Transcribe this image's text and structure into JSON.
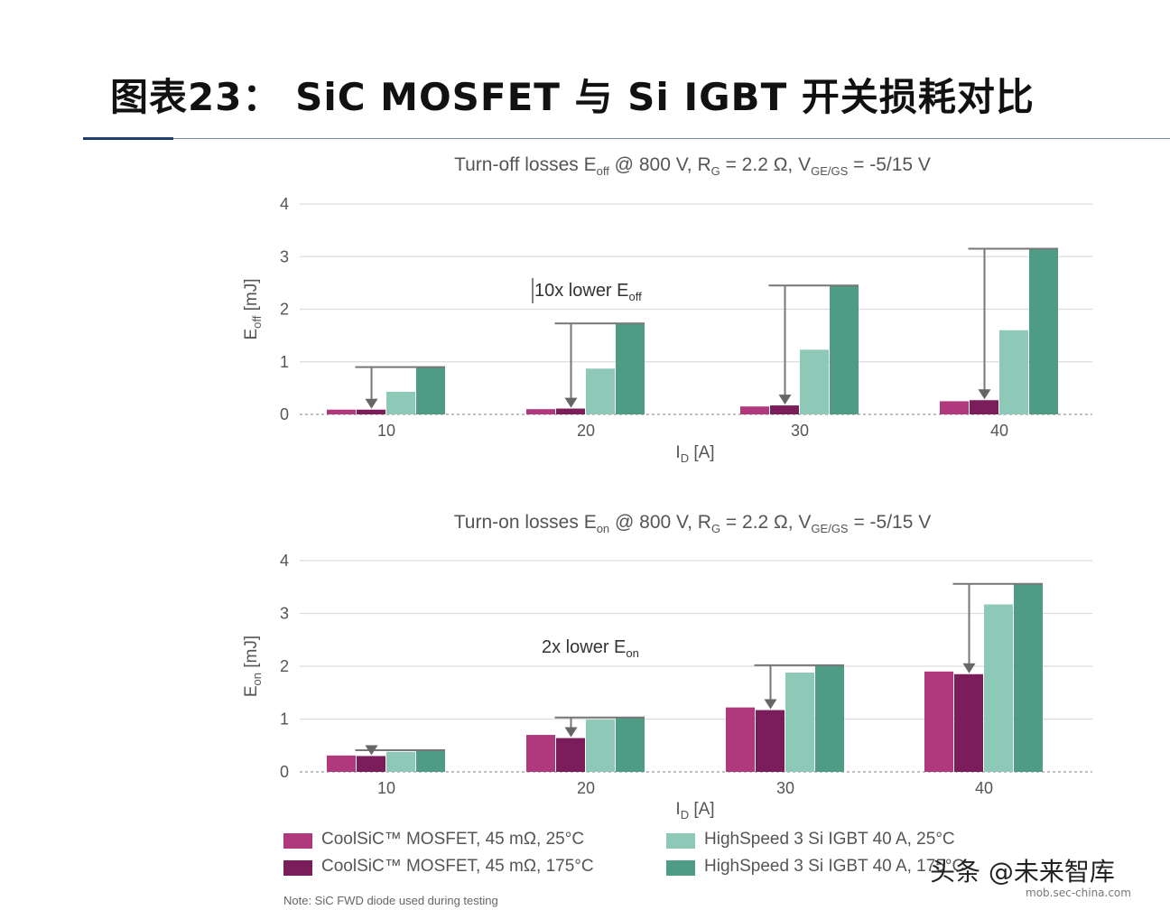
{
  "figure_title": "图表23： SiC MOSFET 与 Si IGBT 开关损耗对比",
  "colors": {
    "sic_25": "#b0397e",
    "sic_175": "#7a1d5a",
    "igbt_25": "#8ec8b6",
    "igbt_175": "#4f9c86",
    "grid": "#dcdcdc",
    "title_rule": "#1f3f6b"
  },
  "chart_data": [
    {
      "type": "bar",
      "title_main": "Turn-off losses E",
      "title_sub": "off",
      "title_rest": " @ 800 V, R",
      "title_rest_sub": "G",
      "title_rest2": " = 2.2 Ω, V",
      "title_rest2_sub": "GE/GS",
      "title_end": " = -5/15 V",
      "ylabel_main": "E",
      "ylabel_sub": "off",
      "ylabel_unit": " [mJ]",
      "xlabel_main": "I",
      "xlabel_sub": "D",
      "xlabel_unit": " [A]",
      "ylim": [
        0,
        4
      ],
      "yticks": [
        "0",
        "1",
        "2",
        "3",
        "4"
      ],
      "categories": [
        "10",
        "20",
        "30",
        "40"
      ],
      "series": [
        {
          "name": "CoolSiC™ MOSFET, 45 mΩ, 25°C",
          "values": [
            0.09,
            0.1,
            0.15,
            0.25
          ]
        },
        {
          "name": "CoolSiC™ MOSFET, 45 mΩ, 175°C",
          "values": [
            0.09,
            0.11,
            0.17,
            0.27
          ]
        },
        {
          "name": "HighSpeed 3 Si IGBT 40 A, 25°C",
          "values": [
            0.43,
            0.87,
            1.23,
            1.6
          ]
        },
        {
          "name": "HighSpeed 3 Si IGBT 40 A, 175°C",
          "values": [
            0.9,
            1.73,
            2.45,
            3.15
          ]
        }
      ],
      "annotation_main": "10x lower E",
      "annotation_sub": "off"
    },
    {
      "type": "bar",
      "title_main": "Turn-on losses E",
      "title_sub": "on",
      "title_rest": " @ 800 V, R",
      "title_rest_sub": "G",
      "title_rest2": " = 2.2 Ω, V",
      "title_rest2_sub": "GE/GS",
      "title_end": " = -5/15 V",
      "ylabel_main": "E",
      "ylabel_sub": "on",
      "ylabel_unit": " [mJ]",
      "xlabel_main": "I",
      "xlabel_sub": "D",
      "xlabel_unit": " [A]",
      "ylim": [
        0,
        4
      ],
      "yticks": [
        "0",
        "1",
        "2",
        "3",
        "4"
      ],
      "categories": [
        "10",
        "20",
        "30",
        "40"
      ],
      "series": [
        {
          "name": "CoolSiC™ MOSFET, 45 mΩ, 25°C",
          "values": [
            0.31,
            0.7,
            1.22,
            1.9
          ]
        },
        {
          "name": "CoolSiC™ MOSFET, 45 mΩ, 175°C",
          "values": [
            0.3,
            0.64,
            1.17,
            1.85
          ]
        },
        {
          "name": "HighSpeed 3 Si IGBT 40 A, 25°C",
          "values": [
            0.38,
            0.99,
            1.88,
            3.17
          ]
        },
        {
          "name": "HighSpeed 3 Si IGBT 40 A, 175°C",
          "values": [
            0.41,
            1.03,
            2.02,
            3.56
          ]
        }
      ],
      "annotation_main": "2x lower E",
      "annotation_sub": "on"
    }
  ],
  "legend": [
    "CoolSiC™ MOSFET, 45 mΩ, 25°C",
    "CoolSiC™ MOSFET, 45 mΩ, 175°C",
    "HighSpeed 3 Si IGBT 40 A, 25°C",
    "HighSpeed 3 Si IGBT 40 A, 175°C"
  ],
  "note": "Note: SiC FWD diode used during testing",
  "watermark": "头条 @未来智库",
  "watermark_sub": "mob.sec-china.com"
}
